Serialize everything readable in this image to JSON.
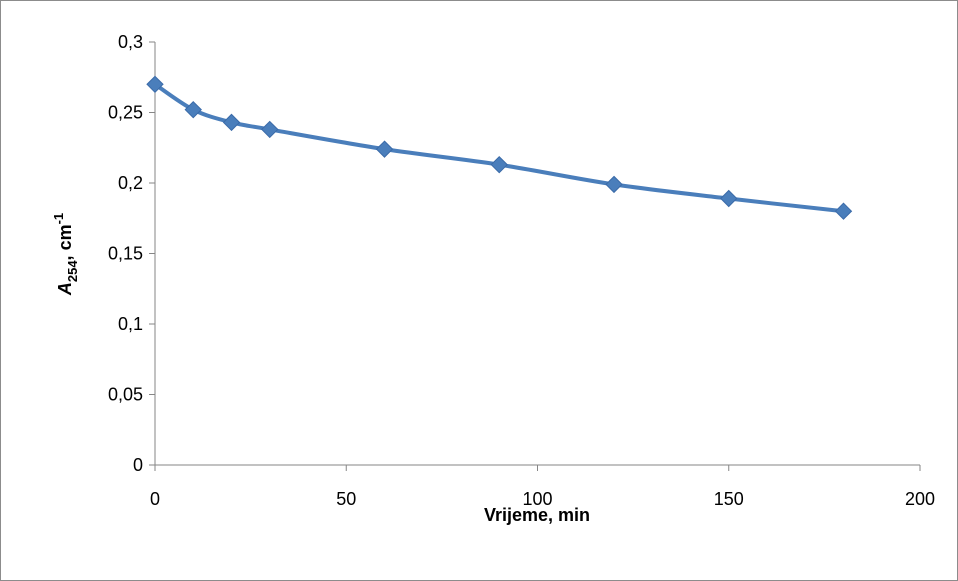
{
  "chart_data": {
    "type": "line",
    "title": "",
    "xlabel": "Vrijeme, min",
    "ylabel": {
      "symbol": "A",
      "subscript": "254",
      "unit_prefix": ", cm",
      "superscript": "-1"
    },
    "x": [
      0,
      10,
      20,
      30,
      60,
      90,
      120,
      150,
      180
    ],
    "series": [
      {
        "values": [
          0.27,
          0.252,
          0.243,
          0.238,
          0.224,
          0.213,
          0.199,
          0.189,
          0.18
        ],
        "color": "#4a7ebb",
        "marker": "diamond"
      }
    ],
    "xlim": [
      0,
      200
    ],
    "ylim": [
      0,
      0.3
    ],
    "x_ticks": [
      "0",
      "50",
      "100",
      "150",
      "200"
    ],
    "y_ticks": [
      "0",
      "0,05",
      "0,1",
      "0,15",
      "0,2",
      "0,25",
      "0,3"
    ],
    "grid": false,
    "legend": "none"
  }
}
